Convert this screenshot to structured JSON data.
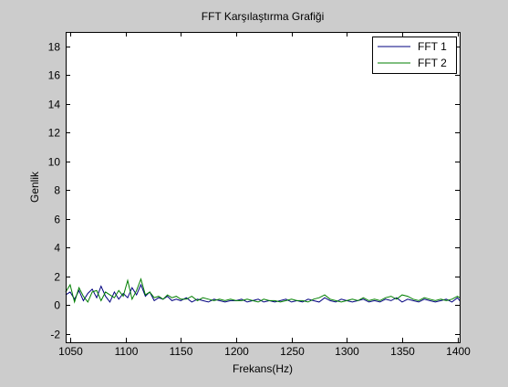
{
  "chart_data": {
    "type": "line",
    "title": "FFT Karşılaştırma Grafiği",
    "xlabel": "Frekans(Hz)",
    "ylabel": "Genlik",
    "xlim": [
      1046,
      1402
    ],
    "ylim": [
      -2.6,
      19
    ],
    "xticks": [
      1050,
      1100,
      1150,
      1200,
      1250,
      1300,
      1350,
      1400
    ],
    "yticks": [
      -2,
      0,
      2,
      4,
      6,
      8,
      10,
      12,
      14,
      16,
      18
    ],
    "legend": "top-right",
    "grid": false,
    "colors": {
      "background": "#cccccc",
      "plot_area": "#ffffff",
      "FFT 1": "#00007f",
      "FFT 2": "#007f00"
    },
    "series": [
      {
        "name": "FFT 1",
        "x": [
          1046,
          1050,
          1054,
          1058,
          1062,
          1066,
          1070,
          1074,
          1078,
          1082,
          1086,
          1090,
          1094,
          1098,
          1102,
          1106,
          1110,
          1114,
          1118,
          1122,
          1126,
          1130,
          1134,
          1138,
          1142,
          1146,
          1150,
          1155,
          1160,
          1165,
          1170,
          1175,
          1180,
          1185,
          1190,
          1195,
          1200,
          1205,
          1210,
          1215,
          1220,
          1225,
          1230,
          1235,
          1240,
          1245,
          1250,
          1255,
          1260,
          1265,
          1270,
          1275,
          1280,
          1285,
          1290,
          1295,
          1300,
          1305,
          1310,
          1315,
          1320,
          1325,
          1330,
          1335,
          1340,
          1345,
          1350,
          1355,
          1360,
          1365,
          1370,
          1375,
          1380,
          1385,
          1390,
          1395,
          1400,
          1402
        ],
        "values": [
          0.7,
          0.9,
          0.4,
          1.0,
          0.3,
          0.8,
          1.1,
          0.5,
          1.3,
          0.6,
          0.2,
          0.9,
          0.4,
          0.8,
          0.5,
          1.2,
          0.7,
          1.4,
          0.6,
          0.9,
          0.3,
          0.5,
          0.4,
          0.6,
          0.3,
          0.4,
          0.3,
          0.5,
          0.2,
          0.4,
          0.3,
          0.2,
          0.4,
          0.3,
          0.2,
          0.3,
          0.3,
          0.4,
          0.2,
          0.3,
          0.4,
          0.2,
          0.3,
          0.2,
          0.3,
          0.4,
          0.2,
          0.3,
          0.2,
          0.4,
          0.3,
          0.2,
          0.5,
          0.3,
          0.2,
          0.4,
          0.3,
          0.2,
          0.3,
          0.4,
          0.2,
          0.3,
          0.2,
          0.4,
          0.3,
          0.5,
          0.2,
          0.4,
          0.3,
          0.2,
          0.4,
          0.3,
          0.2,
          0.3,
          0.4,
          0.2,
          0.5,
          0.3
        ]
      },
      {
        "name": "FFT 2",
        "x": [
          1046,
          1050,
          1054,
          1058,
          1062,
          1066,
          1070,
          1074,
          1078,
          1082,
          1086,
          1090,
          1094,
          1098,
          1102,
          1106,
          1110,
          1114,
          1118,
          1122,
          1126,
          1130,
          1134,
          1138,
          1142,
          1146,
          1150,
          1155,
          1160,
          1165,
          1170,
          1175,
          1180,
          1185,
          1190,
          1195,
          1200,
          1205,
          1210,
          1215,
          1220,
          1225,
          1230,
          1235,
          1240,
          1245,
          1250,
          1255,
          1260,
          1265,
          1270,
          1275,
          1280,
          1285,
          1290,
          1295,
          1300,
          1305,
          1310,
          1315,
          1320,
          1325,
          1330,
          1335,
          1340,
          1345,
          1350,
          1355,
          1360,
          1365,
          1370,
          1375,
          1380,
          1385,
          1390,
          1395,
          1400,
          1402
        ],
        "values": [
          0.9,
          1.4,
          0.2,
          1.2,
          0.6,
          0.2,
          0.9,
          1.0,
          0.3,
          0.9,
          0.7,
          0.5,
          1.0,
          0.6,
          1.7,
          0.4,
          1.0,
          1.8,
          0.7,
          0.9,
          0.5,
          0.6,
          0.4,
          0.7,
          0.5,
          0.6,
          0.4,
          0.4,
          0.6,
          0.3,
          0.5,
          0.4,
          0.3,
          0.4,
          0.3,
          0.4,
          0.3,
          0.3,
          0.4,
          0.3,
          0.2,
          0.4,
          0.3,
          0.3,
          0.2,
          0.3,
          0.4,
          0.3,
          0.3,
          0.2,
          0.4,
          0.5,
          0.7,
          0.4,
          0.3,
          0.2,
          0.3,
          0.4,
          0.3,
          0.5,
          0.3,
          0.4,
          0.3,
          0.5,
          0.6,
          0.4,
          0.7,
          0.6,
          0.4,
          0.3,
          0.5,
          0.4,
          0.3,
          0.4,
          0.3,
          0.4,
          0.6,
          0.5
        ]
      }
    ]
  }
}
